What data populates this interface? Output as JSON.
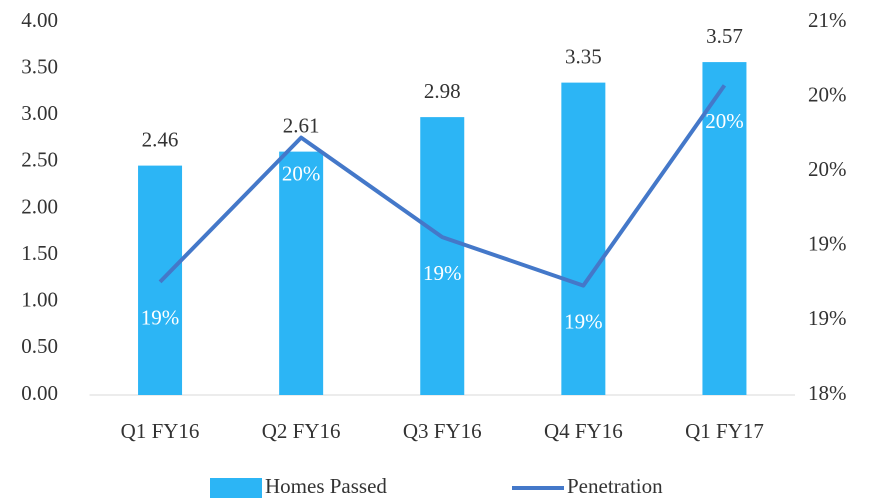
{
  "chart_data": {
    "type": "bar_line",
    "categories": [
      "Q1 FY16",
      "Q2 FY16",
      "Q3 FY16",
      "Q4 FY16",
      "Q1 FY17"
    ],
    "series": [
      {
        "name": "Homes Passed",
        "type": "bar",
        "color": "#2cb5f5",
        "values": [
          2.46,
          2.61,
          2.98,
          3.35,
          3.57
        ]
      },
      {
        "name": "Penetration",
        "type": "line",
        "axis": "y2",
        "color": "#4478c9",
        "values": [
          18.91,
          20.07,
          19.27,
          18.88,
          20.49
        ],
        "value_labels": [
          "19%",
          "20%",
          "19%",
          "19%",
          "20%"
        ]
      }
    ],
    "ylim": [
      0,
      4
    ],
    "yticks": [
      {
        "value": 0,
        "label": "0.00"
      },
      {
        "value": 0.5,
        "label": "0.50"
      },
      {
        "value": 1,
        "label": "1.00"
      },
      {
        "value": 1.5,
        "label": "1.50"
      },
      {
        "value": 2,
        "label": "2.00"
      },
      {
        "value": 2.5,
        "label": "2.50"
      },
      {
        "value": 3,
        "label": "3.00"
      },
      {
        "value": 3.5,
        "label": "3.50"
      },
      {
        "value": 4,
        "label": "4.00"
      }
    ],
    "y2lim": [
      18,
      21
    ],
    "y2ticks": [
      {
        "value": 18,
        "label": "18%"
      },
      {
        "value": 18.6,
        "label": "19%"
      },
      {
        "value": 19.2,
        "label": "19%"
      },
      {
        "value": 19.8,
        "label": "20%"
      },
      {
        "value": 20.4,
        "label": "20%"
      },
      {
        "value": 21,
        "label": "21%"
      }
    ],
    "legend": "bottom"
  }
}
